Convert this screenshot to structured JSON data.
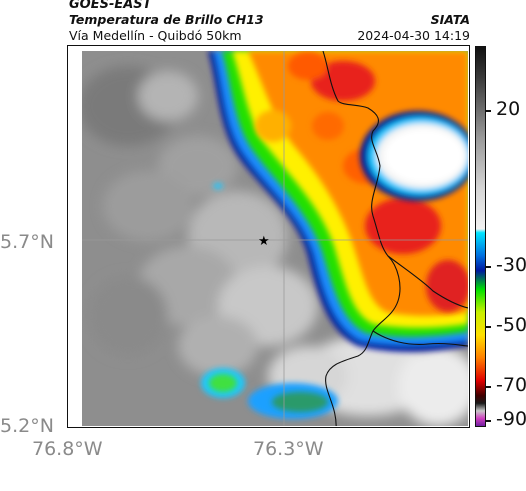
{
  "header": {
    "satellite": "GOES-EAST",
    "product": "Temperatura de Brillo CH13",
    "region": "Vía Medellín - Quibdó 50km",
    "agency": "SIATA",
    "datetime": "2024-04-30 14:19"
  },
  "axes": {
    "x_ticks": [
      "76.8°W",
      "76.3°W"
    ],
    "y_ticks": [
      "5.7°N",
      "5.2°N"
    ]
  },
  "colorbar": {
    "labels": [
      "20",
      "-30",
      "-50",
      "-70",
      "-90"
    ],
    "unit_scale": "brightness temperature",
    "stops": [
      "#111111",
      "#3a3a3a",
      "#6a6a6a",
      "#9a9a9a",
      "#d8d8d8",
      "#f2f2f2",
      "#00e5ff",
      "#0070e0",
      "#0018a0",
      "#00e000",
      "#c8f000",
      "#ffe000",
      "#ff8000",
      "#e00000",
      "#400000",
      "#1a1a1a",
      "#c8c8c8",
      "#d040c0",
      "#7020a0"
    ]
  },
  "map": {
    "marker": "city-star",
    "colors": {
      "cold_core": "#e8201a",
      "orange": "#ff8a00",
      "yellow": "#fff000",
      "green": "#22e000",
      "blue_edge": "#0018a0",
      "cyan": "#1ec8ff",
      "clear_gray": "#8c8c8c"
    }
  }
}
